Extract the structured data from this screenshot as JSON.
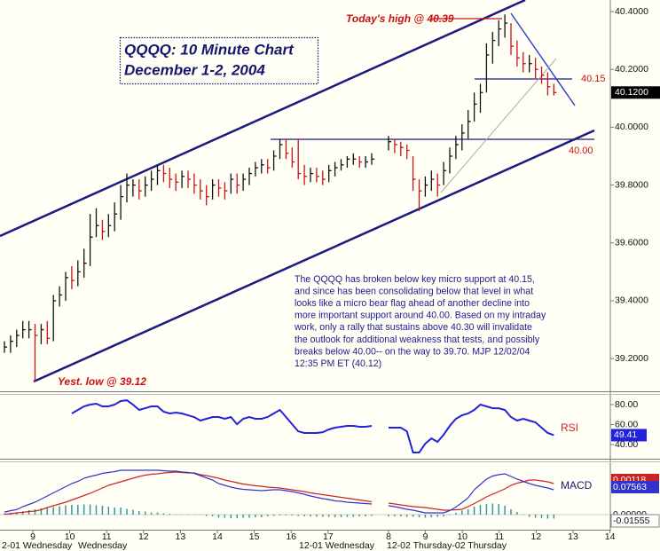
{
  "chart_data": {
    "type": "hlc",
    "title": "QQQQ: 10 Minute Chart",
    "subtitle": "December 1-2, 2004",
    "ylim": [
      39.09,
      40.44
    ],
    "yticks": [
      {
        "value": 40.4,
        "label": "40.4000"
      },
      {
        "value": 40.2,
        "label": "40.2000"
      },
      {
        "value": 40.0,
        "label": "40.0000"
      },
      {
        "value": 39.8,
        "label": "39.8000"
      },
      {
        "value": 39.6,
        "label": "39.6000"
      },
      {
        "value": 39.4,
        "label": "39.4000"
      },
      {
        "value": 39.2,
        "label": "39.2000"
      }
    ],
    "last_price_label": "40.1200",
    "up_color": "#111111",
    "down_color": "#cc1111",
    "annotations": {
      "today_high": "Today's high @ 40.39",
      "level_upper": "40.15",
      "level_lower": "40.00",
      "yest_low": "Yest. low @ 39.12"
    },
    "commentary": [
      "The QQQQ has broken below key micro support at 40.15,",
      "and since has been consolidating below that level in what",
      "looks like a micro bear flag ahead of another decline into",
      "more important support around 40.00. Based on my intraday",
      "work, only a rally that sustains above 40.30 will invalidate",
      "the outlook for additional weakness that tests, and possibly",
      "breaks below 40.00-- on the way to 39.70. MJP 12/02/04",
      "12:35 PM ET (40.12)"
    ],
    "x_hours": [
      [
        9,
        10,
        11,
        12,
        13,
        14,
        15,
        16,
        17
      ],
      [
        8,
        9,
        10,
        11,
        12,
        13,
        14
      ]
    ],
    "date_labels": [
      "2-01 Wednesday",
      "Wednesday",
      "12-01 Wednesday",
      "12-02 Thursday-02 Thursday"
    ],
    "rsi": {
      "label": "RSI",
      "color": "#2222dd",
      "ylim": [
        27.6,
        88
      ],
      "yticks": [
        {
          "value": 80,
          "label": "80.00"
        },
        {
          "value": 60,
          "label": "60.00"
        },
        {
          "value": 40,
          "label": "40.00"
        }
      ]
    },
    "macd": {
      "label": "MACD",
      "macd_color": "#3333cc",
      "signal_color": "#cc2222",
      "histogram_color": "#339999",
      "ylim": [
        -0.03,
        0.12
      ],
      "right_labels": [
        "0.00118",
        "0.07563",
        "0.00000",
        "-0.01555"
      ]
    },
    "sessions": [
      {
        "highs": [
          39.26,
          39.28,
          39.3,
          39.33,
          39.33,
          39.32,
          39.32,
          39.33,
          39.42,
          39.45,
          39.5,
          39.52,
          39.54,
          39.58,
          39.7,
          39.72,
          39.68,
          39.7,
          39.74,
          39.8,
          39.84,
          39.82,
          39.82,
          39.83,
          39.85,
          39.87,
          39.87,
          39.86,
          39.84,
          39.85,
          39.85,
          39.84,
          39.82,
          39.8,
          39.82,
          39.82,
          39.81,
          39.84,
          39.84,
          39.84,
          39.86,
          39.88,
          39.89,
          39.89,
          39.92,
          39.96,
          39.96,
          39.93,
          39.96,
          39.87,
          39.86,
          39.86,
          39.85,
          39.87,
          39.88,
          39.89,
          39.9,
          39.91,
          39.9,
          39.9,
          39.91
        ],
        "lows": [
          39.22,
          39.22,
          39.24,
          39.27,
          39.27,
          39.12,
          39.25,
          39.25,
          39.26,
          39.38,
          39.4,
          39.44,
          39.45,
          39.48,
          39.52,
          39.62,
          39.61,
          39.62,
          39.64,
          39.68,
          39.74,
          39.76,
          39.75,
          39.76,
          39.78,
          39.8,
          39.81,
          39.79,
          39.78,
          39.79,
          39.79,
          39.77,
          39.75,
          39.73,
          39.75,
          39.76,
          39.75,
          39.77,
          39.77,
          39.78,
          39.8,
          39.83,
          39.84,
          39.84,
          39.85,
          39.89,
          39.89,
          39.86,
          39.82,
          39.8,
          39.81,
          39.81,
          39.8,
          39.81,
          39.83,
          39.85,
          39.86,
          39.87,
          39.86,
          39.86,
          39.87
        ],
        "closes": [
          39.24,
          39.26,
          39.28,
          39.3,
          39.3,
          39.28,
          39.3,
          39.27,
          39.4,
          39.42,
          39.48,
          39.47,
          39.5,
          39.53,
          39.62,
          39.66,
          39.64,
          39.66,
          39.7,
          39.76,
          39.8,
          39.8,
          39.78,
          39.8,
          39.82,
          39.85,
          39.84,
          39.82,
          39.81,
          39.83,
          39.82,
          39.8,
          39.78,
          39.76,
          39.8,
          39.79,
          39.78,
          39.82,
          39.8,
          39.82,
          39.84,
          39.86,
          39.87,
          39.86,
          39.9,
          39.94,
          39.91,
          39.88,
          39.84,
          39.83,
          39.84,
          39.83,
          39.82,
          39.85,
          39.86,
          39.87,
          39.89,
          39.89,
          39.88,
          39.88,
          39.89
        ],
        "rsi": [
          null,
          null,
          null,
          null,
          null,
          null,
          null,
          null,
          null,
          null,
          null,
          71.1,
          74.7,
          78.2,
          80,
          80.9,
          78.2,
          78.2,
          80,
          83.6,
          84.4,
          80,
          74.7,
          76.4,
          78.2,
          78.2,
          72.9,
          71.1,
          72,
          71.1,
          69.3,
          67.6,
          64,
          65.8,
          67.6,
          67.6,
          65.8,
          67.6,
          60.4,
          65.8,
          67.6,
          65.8,
          65.8,
          67.6,
          71.1,
          74.7,
          67.6,
          60.4,
          53.3,
          51.6,
          51.6,
          51.6,
          52.4,
          55.1,
          56.9,
          57.8,
          58.7,
          58.7,
          57.8,
          57.8,
          58.7
        ],
        "macd": [
          0.006,
          0.0088,
          0.0114,
          0.018,
          0.023,
          0.028,
          0.035,
          0.042,
          0.049,
          0.056,
          0.063,
          0.07,
          0.075,
          0.082,
          0.086,
          0.089,
          0.093,
          0.095,
          0.097,
          0.1,
          0.1,
          0.1,
          0.1,
          0.1,
          0.1,
          0.1,
          0.099,
          0.098,
          0.098,
          0.096,
          0.095,
          0.093,
          0.088,
          0.083,
          0.078,
          0.07,
          0.066,
          0.062,
          0.059,
          0.057,
          0.056,
          0.055,
          0.054,
          0.055,
          0.056,
          0.056,
          0.054,
          0.052,
          0.049,
          0.046,
          0.042,
          0.039,
          0.036,
          0.034,
          0.031,
          0.03,
          0.028,
          0.027,
          0.026,
          0.025,
          0.024
        ],
        "signal": [
          0.001,
          0.002,
          0.004,
          0.005,
          0.007,
          0.008,
          0.011,
          0.016,
          0.02,
          0.024,
          0.028,
          0.033,
          0.038,
          0.043,
          0.048,
          0.054,
          0.06,
          0.066,
          0.07,
          0.074,
          0.078,
          0.082,
          0.086,
          0.089,
          0.091,
          0.092,
          0.094,
          0.095,
          0.096,
          0.095,
          0.094,
          0.094,
          0.09,
          0.088,
          0.085,
          0.082,
          0.078,
          0.075,
          0.072,
          0.069,
          0.067,
          0.065,
          0.064,
          0.062,
          0.061,
          0.06,
          0.058,
          0.056,
          0.054,
          0.052,
          0.049,
          0.047,
          0.045,
          0.043,
          0.041,
          0.039,
          0.037,
          0.035,
          0.033,
          0.031,
          0.029
        ],
        "histogram": [
          0.003,
          0.004,
          0.005,
          0.008,
          0.01,
          0.012,
          0.014,
          0.016,
          0.017,
          0.019,
          0.021,
          0.022,
          0.022,
          0.023,
          0.023,
          0.021,
          0.02,
          0.018,
          0.016,
          0.016,
          0.013,
          0.011,
          0.008,
          0.007,
          0.005,
          0.005,
          0.003,
          0.002,
          0.001,
          0.001,
          0.001,
          -0.001,
          -0.001,
          -0.003,
          -0.004,
          -0.007,
          -0.007,
          -0.008,
          -0.008,
          -0.007,
          -0.007,
          -0.006,
          -0.006,
          -0.004,
          -0.003,
          -0.002,
          -0.002,
          -0.002,
          -0.003,
          -0.004,
          -0.004,
          -0.005,
          -0.005,
          -0.005,
          -0.006,
          -0.006,
          -0.005,
          -0.005,
          -0.004,
          -0.004,
          -0.003
        ]
      },
      {
        "highs": [
          39.97,
          39.96,
          39.95,
          39.94,
          39.9,
          39.82,
          39.83,
          39.85,
          39.84,
          39.88,
          39.93,
          39.97,
          40.01,
          40.06,
          40.12,
          40.15,
          40.29,
          40.33,
          40.37,
          40.39,
          40.36,
          40.3,
          40.26,
          40.25,
          40.24,
          40.21,
          40.19,
          40.15
        ],
        "lows": [
          39.92,
          39.91,
          39.9,
          39.89,
          39.78,
          39.71,
          39.76,
          39.78,
          39.76,
          39.8,
          39.84,
          39.89,
          39.92,
          39.96,
          40.02,
          40.05,
          40.12,
          40.22,
          40.28,
          40.31,
          40.25,
          40.21,
          40.19,
          40.19,
          40.17,
          40.15,
          40.11,
          40.11
        ],
        "closes": [
          39.95,
          39.94,
          39.93,
          39.92,
          39.82,
          39.78,
          39.8,
          39.82,
          39.8,
          39.85,
          39.9,
          39.94,
          39.98,
          40.02,
          40.08,
          40.12,
          40.25,
          40.3,
          40.34,
          40.36,
          40.28,
          40.24,
          40.22,
          40.22,
          40.2,
          40.18,
          40.14,
          40.12
        ],
        "rsi": [
          56.9,
          56.9,
          56.9,
          53.3,
          32,
          32,
          40.9,
          46.2,
          42.7,
          49.8,
          58.7,
          65.8,
          69.3,
          71.1,
          74.7,
          80,
          78.2,
          76.4,
          76.4,
          74.7,
          67.6,
          64,
          65.8,
          64,
          62.2,
          56.9,
          51.6,
          49.41
        ],
        "macd": [
          0.02,
          0.018,
          0.015,
          0.012,
          0.01,
          0.007,
          0.004,
          0.004,
          0.004,
          0.004,
          0.009,
          0.017,
          0.027,
          0.038,
          0.056,
          0.068,
          0.08,
          0.087,
          0.09,
          0.092,
          0.086,
          0.08,
          0.075,
          0.07,
          0.066,
          0.063,
          0.06,
          0.056
        ],
        "signal": [
          0.026,
          0.024,
          0.022,
          0.02,
          0.018,
          0.017,
          0.016,
          0.014,
          0.012,
          0.01,
          0.01,
          0.011,
          0.012,
          0.018,
          0.025,
          0.032,
          0.04,
          0.046,
          0.052,
          0.058,
          0.066,
          0.071,
          0.074,
          0.078,
          0.078,
          0.076,
          0.074,
          0.07
        ],
        "histogram": [
          -0.004,
          -0.004,
          -0.004,
          -0.005,
          -0.005,
          -0.006,
          -0.007,
          -0.006,
          -0.005,
          -0.004,
          -0.001,
          0.004,
          0.009,
          0.012,
          0.018,
          0.022,
          0.024,
          0.025,
          0.024,
          0.02,
          0.012,
          0.006,
          0.001,
          -0.005,
          -0.007,
          -0.008,
          -0.009,
          -0.009
        ]
      }
    ]
  }
}
